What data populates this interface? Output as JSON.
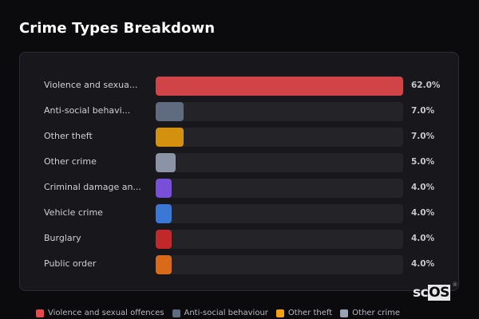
{
  "header": {
    "title": "Crime Types Breakdown"
  },
  "rows": [
    {
      "label": "Violence and sexua...",
      "value": "62.0%",
      "pct": 100,
      "color": "#d04448"
    },
    {
      "label": "Anti-social behavi...",
      "value": "7.0%",
      "pct": 11.3,
      "color": "#5f6b7e"
    },
    {
      "label": "Other theft",
      "value": "7.0%",
      "pct": 11.3,
      "color": "#d4900f"
    },
    {
      "label": "Other crime",
      "value": "5.0%",
      "pct": 8.1,
      "color": "#8a94a6"
    },
    {
      "label": "Criminal damage an...",
      "value": "4.0%",
      "pct": 6.5,
      "color": "#7a4fd8"
    },
    {
      "label": "Vehicle crime",
      "value": "4.0%",
      "pct": 6.5,
      "color": "#3a78d8"
    },
    {
      "label": "Burglary",
      "value": "4.0%",
      "pct": 6.5,
      "color": "#c0282a"
    },
    {
      "label": "Public order",
      "value": "4.0%",
      "pct": 6.5,
      "color": "#d86a1a"
    }
  ],
  "legend": [
    {
      "label": "Violence and sexual offences",
      "color": "#e8474c"
    },
    {
      "label": "Anti-social behaviour",
      "color": "#5f6b7e"
    },
    {
      "label": "Other theft",
      "color": "#f5a20f"
    },
    {
      "label": "Other crime",
      "color": "#98a4b6"
    }
  ],
  "logo": {
    "text_left": "sc",
    "text_right": "OS",
    "reg": "®"
  },
  "chart_data": {
    "type": "bar",
    "orientation": "horizontal",
    "title": "Crime Types Breakdown",
    "categories": [
      "Violence and sexual offences",
      "Anti-social behaviour",
      "Other theft",
      "Other crime",
      "Criminal damage and arson",
      "Vehicle crime",
      "Burglary",
      "Public order"
    ],
    "category_labels_displayed": [
      "Violence and sexua...",
      "Anti-social behavi...",
      "Other theft",
      "Other crime",
      "Criminal damage an...",
      "Vehicle crime",
      "Burglary",
      "Public order"
    ],
    "values": [
      62.0,
      7.0,
      7.0,
      5.0,
      4.0,
      4.0,
      4.0,
      4.0
    ],
    "value_labels": [
      "62.0%",
      "7.0%",
      "7.0%",
      "5.0%",
      "4.0%",
      "4.0%",
      "4.0%",
      "4.0%"
    ],
    "unit": "%",
    "xlabel": "",
    "ylabel": "",
    "xlim": [
      0,
      62
    ],
    "grid": false,
    "legend": {
      "position": "bottom",
      "entries": [
        "Violence and sexual offences",
        "Anti-social behaviour",
        "Other theft",
        "Other crime"
      ]
    }
  }
}
